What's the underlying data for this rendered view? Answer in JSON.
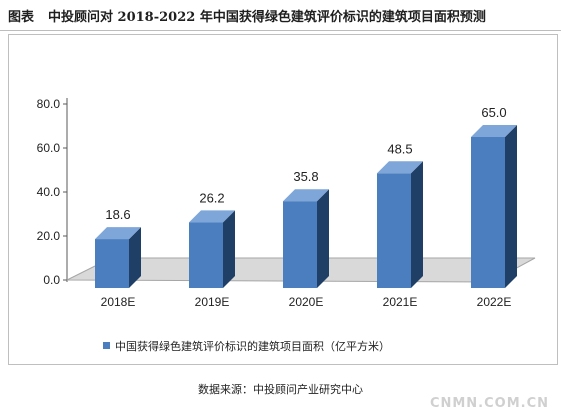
{
  "header": {
    "prefix": "图表",
    "title": "中投顾问对 2018-2022 年中国获得绿色建筑评价标识的建筑项目面积预测"
  },
  "footer": {
    "source": "数据来源：中投顾问产业研究中心",
    "watermark": "CNMN.COM.CN"
  },
  "colors": {
    "bar_front": "#4a7ebf",
    "bar_side": "#1f3f66",
    "bar_top": "#7ea6d9",
    "floor": "#d9d9d9",
    "legend": "#4a7ebf"
  },
  "chart_data": {
    "type": "bar",
    "categories": [
      "2018E",
      "2019E",
      "2020E",
      "2021E",
      "2022E"
    ],
    "series": [
      {
        "name": "中国获得绿色建筑评价标识的建筑项目面积（亿平方米）",
        "values": [
          18.6,
          26.2,
          35.8,
          48.5,
          65.0
        ],
        "labels": [
          "18.6",
          "26.2",
          "35.8",
          "48.5",
          "65.0"
        ]
      }
    ],
    "y_ticks": [
      "80.0",
      "60.0",
      "40.0",
      "20.0",
      "0.0"
    ],
    "ylim": [
      0,
      80
    ],
    "grid": false,
    "three_d": true,
    "legend_position": "bottom"
  }
}
